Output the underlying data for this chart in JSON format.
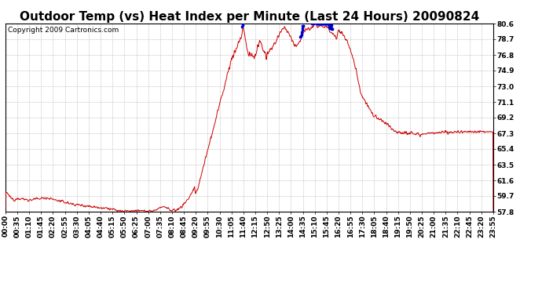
{
  "title": "Outdoor Temp (vs) Heat Index per Minute (Last 24 Hours) 20090824",
  "copyright": "Copyright 2009 Cartronics.com",
  "background_color": "#ffffff",
  "plot_bg_color": "#ffffff",
  "line_color_red": "#cc0000",
  "line_color_blue": "#0000cc",
  "grid_color": "#bbbbbb",
  "yticks": [
    57.8,
    59.7,
    61.6,
    63.5,
    65.4,
    67.3,
    69.2,
    71.1,
    73.0,
    74.9,
    76.8,
    78.7,
    80.6
  ],
  "ylim": [
    57.8,
    80.6
  ],
  "xtick_labels": [
    "00:00",
    "00:35",
    "01:10",
    "01:45",
    "02:20",
    "02:55",
    "03:30",
    "04:05",
    "04:40",
    "05:15",
    "05:50",
    "06:25",
    "07:00",
    "07:35",
    "08:10",
    "08:45",
    "09:20",
    "09:55",
    "10:30",
    "11:05",
    "11:40",
    "12:15",
    "12:50",
    "13:25",
    "14:00",
    "14:35",
    "15:10",
    "15:45",
    "16:20",
    "16:55",
    "17:30",
    "18:05",
    "18:40",
    "19:15",
    "19:50",
    "20:25",
    "21:00",
    "21:35",
    "22:10",
    "22:45",
    "23:20",
    "23:55"
  ],
  "title_fontsize": 11,
  "tick_fontsize": 6.5,
  "copyright_fontsize": 6.5
}
